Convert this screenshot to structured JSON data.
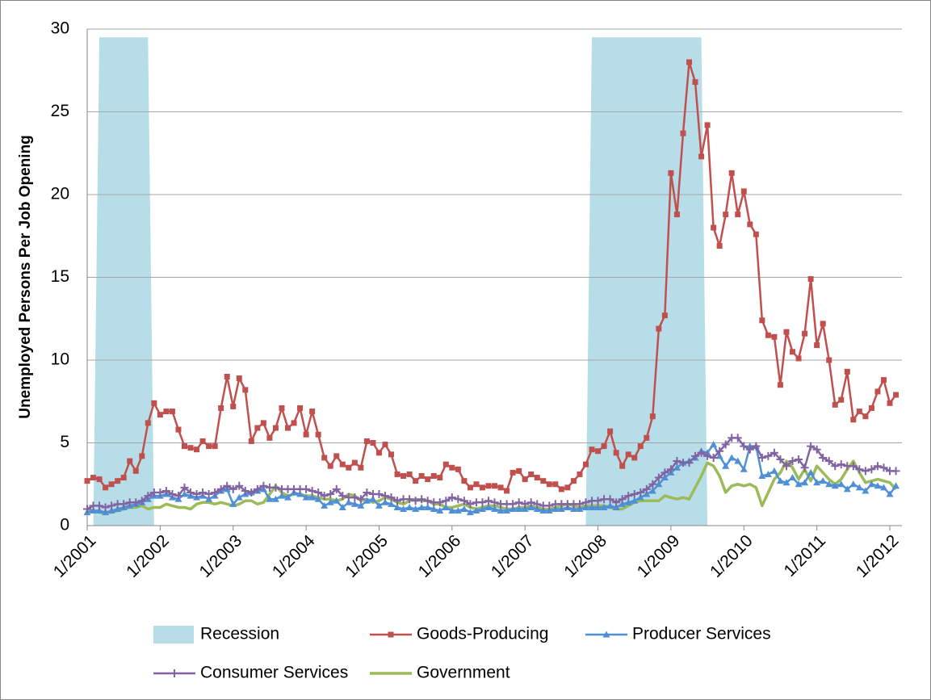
{
  "chart_data": {
    "type": "line",
    "y_label": "Unemployed Persons Per Job Opening",
    "categories": [
      "1/2001",
      null,
      null,
      null,
      null,
      null,
      null,
      null,
      null,
      null,
      null,
      null,
      "1/2002",
      null,
      null,
      null,
      null,
      null,
      null,
      null,
      null,
      null,
      null,
      null,
      "1/2003",
      null,
      null,
      null,
      null,
      null,
      null,
      null,
      null,
      null,
      null,
      null,
      "1/2004",
      null,
      null,
      null,
      null,
      null,
      null,
      null,
      null,
      null,
      null,
      null,
      "1/2005",
      null,
      null,
      null,
      null,
      null,
      null,
      null,
      null,
      null,
      null,
      null,
      "1/2006",
      null,
      null,
      null,
      null,
      null,
      null,
      null,
      null,
      null,
      null,
      null,
      "1/2007",
      null,
      null,
      null,
      null,
      null,
      null,
      null,
      null,
      null,
      null,
      null,
      "1/2008",
      null,
      null,
      null,
      null,
      null,
      null,
      null,
      null,
      null,
      null,
      null,
      "1/2009",
      null,
      null,
      null,
      null,
      null,
      null,
      null,
      null,
      null,
      null,
      null,
      "1/2010",
      null,
      null,
      null,
      null,
      null,
      null,
      null,
      null,
      null,
      null,
      null,
      "1/2011",
      null,
      null,
      null,
      null,
      null,
      null,
      null,
      null,
      null,
      null,
      null,
      "1/2012",
      null
    ],
    "ylim": [
      0,
      30
    ],
    "yticks": [
      0,
      5,
      10,
      15,
      20,
      25,
      30
    ],
    "grid": true,
    "series": [
      {
        "name": "Recession",
        "type": "area",
        "color": "#b7dde8",
        "values": [
          0,
          0,
          29.5,
          29.5,
          29.5,
          29.5,
          29.5,
          29.5,
          29.5,
          29.5,
          29.5,
          0,
          0,
          0,
          0,
          0,
          0,
          0,
          0,
          0,
          0,
          0,
          0,
          0,
          0,
          0,
          0,
          0,
          0,
          0,
          0,
          0,
          0,
          0,
          0,
          0,
          0,
          0,
          0,
          0,
          0,
          0,
          0,
          0,
          0,
          0,
          0,
          0,
          0,
          0,
          0,
          0,
          0,
          0,
          0,
          0,
          0,
          0,
          0,
          0,
          0,
          0,
          0,
          0,
          0,
          0,
          0,
          0,
          0,
          0,
          0,
          0,
          0,
          0,
          0,
          0,
          0,
          0,
          0,
          0,
          0,
          0,
          0,
          29.5,
          29.5,
          29.5,
          29.5,
          29.5,
          29.5,
          29.5,
          29.5,
          29.5,
          29.5,
          29.5,
          29.5,
          29.5,
          29.5,
          29.5,
          29.5,
          29.5,
          29.5,
          29.5,
          0,
          0,
          0,
          0,
          0,
          0,
          0,
          0,
          0,
          0,
          0,
          0,
          0,
          0,
          0,
          0,
          0,
          0,
          0,
          0,
          0,
          0,
          0,
          0,
          0,
          0,
          0,
          0,
          0,
          0,
          0,
          0
        ]
      },
      {
        "name": "Goods-Producing",
        "type": "line",
        "marker": "square",
        "color": "#c0504d",
        "values": [
          2.7,
          2.9,
          2.8,
          2.3,
          2.5,
          2.7,
          2.9,
          3.9,
          3.3,
          4.2,
          6.2,
          7.4,
          6.7,
          6.9,
          6.9,
          5.8,
          4.8,
          4.7,
          4.6,
          5.1,
          4.8,
          4.8,
          7.1,
          9.0,
          7.2,
          8.9,
          8.2,
          5.1,
          5.9,
          6.2,
          5.3,
          5.9,
          7.1,
          5.9,
          6.2,
          7.1,
          5.5,
          6.9,
          5.5,
          4.1,
          3.6,
          4.2,
          3.7,
          3.5,
          3.8,
          3.5,
          5.1,
          5.0,
          4.4,
          4.9,
          4.3,
          3.1,
          3.0,
          3.1,
          2.7,
          3.0,
          2.8,
          3.0,
          2.9,
          3.7,
          3.5,
          3.4,
          2.7,
          2.3,
          2.5,
          2.3,
          2.4,
          2.4,
          2.3,
          2.1,
          3.2,
          3.3,
          2.8,
          3.1,
          2.9,
          2.7,
          2.5,
          2.5,
          2.2,
          2.3,
          2.7,
          3.1,
          3.7,
          4.6,
          4.5,
          4.8,
          5.7,
          4.4,
          3.6,
          4.3,
          4.1,
          4.8,
          5.3,
          6.6,
          11.9,
          12.7,
          21.3,
          18.8,
          23.7,
          28.0,
          26.8,
          22.3,
          24.2,
          18.0,
          16.9,
          18.8,
          21.3,
          18.8,
          20.2,
          18.2,
          17.6,
          12.4,
          11.5,
          11.4,
          8.5,
          11.7,
          10.5,
          10.1,
          11.6,
          14.9,
          10.9,
          12.2,
          10.0,
          7.3,
          7.6,
          9.3,
          6.4,
          6.9,
          6.6,
          7.1,
          8.1,
          8.8,
          7.4,
          7.9
        ]
      },
      {
        "name": "Producer Services",
        "type": "line",
        "marker": "triangle",
        "color": "#4f8fd6",
        "values": [
          0.8,
          0.9,
          0.9,
          0.8,
          0.9,
          1.0,
          1.1,
          1.2,
          1.3,
          1.4,
          1.6,
          1.8,
          1.8,
          1.9,
          1.7,
          1.6,
          1.9,
          1.8,
          1.7,
          1.8,
          1.6,
          1.8,
          2.1,
          2.2,
          1.3,
          1.7,
          1.9,
          2.0,
          2.1,
          2.2,
          1.6,
          1.6,
          1.8,
          1.7,
          2.0,
          1.9,
          1.7,
          1.7,
          1.6,
          1.2,
          1.4,
          1.5,
          1.1,
          1.4,
          1.3,
          1.2,
          1.5,
          1.6,
          1.2,
          1.4,
          1.3,
          1.1,
          1.0,
          1.1,
          1.0,
          1.1,
          1.1,
          1.0,
          0.9,
          1.1,
          0.9,
          0.9,
          1.0,
          0.8,
          0.9,
          1.0,
          1.1,
          1.0,
          0.9,
          0.9,
          1.0,
          1.0,
          1.0,
          1.1,
          1.0,
          0.9,
          0.9,
          1.0,
          1.0,
          1.1,
          1.0,
          1.0,
          1.1,
          1.1,
          1.1,
          1.1,
          1.2,
          1.1,
          1.3,
          1.4,
          1.5,
          1.7,
          1.9,
          2.1,
          2.5,
          2.9,
          3.2,
          3.5,
          3.8,
          3.9,
          4.1,
          4.5,
          4.4,
          4.9,
          4.2,
          3.6,
          4.1,
          3.9,
          3.4,
          4.8,
          4.8,
          3.0,
          3.1,
          3.3,
          2.7,
          2.6,
          2.9,
          2.5,
          2.6,
          3.2,
          2.6,
          2.7,
          2.5,
          2.4,
          2.5,
          2.2,
          2.5,
          2.3,
          2.1,
          2.5,
          2.4,
          2.3,
          1.9,
          2.4
        ]
      },
      {
        "name": "Consumer Services",
        "type": "line",
        "marker": "plus",
        "color": "#8064a2",
        "values": [
          1.0,
          1.2,
          1.2,
          1.1,
          1.2,
          1.3,
          1.3,
          1.4,
          1.4,
          1.5,
          1.8,
          2.0,
          2.0,
          2.1,
          1.9,
          1.8,
          2.3,
          2.0,
          1.9,
          2.0,
          1.9,
          2.0,
          2.2,
          2.4,
          2.2,
          2.4,
          2.1,
          2.0,
          2.2,
          2.4,
          2.3,
          2.3,
          2.2,
          2.2,
          2.2,
          2.2,
          2.2,
          2.1,
          2.0,
          1.8,
          1.9,
          2.2,
          1.8,
          1.7,
          1.7,
          1.6,
          2.0,
          1.9,
          1.9,
          1.8,
          1.7,
          1.5,
          1.6,
          1.6,
          1.5,
          1.6,
          1.5,
          1.4,
          1.4,
          1.5,
          1.7,
          1.6,
          1.5,
          1.3,
          1.4,
          1.4,
          1.5,
          1.4,
          1.3,
          1.3,
          1.3,
          1.4,
          1.3,
          1.4,
          1.3,
          1.2,
          1.2,
          1.3,
          1.3,
          1.3,
          1.3,
          1.3,
          1.4,
          1.5,
          1.5,
          1.6,
          1.6,
          1.4,
          1.6,
          1.8,
          1.9,
          2.0,
          2.2,
          2.5,
          2.9,
          3.2,
          3.4,
          3.9,
          3.8,
          3.8,
          4.2,
          4.4,
          4.2,
          4.1,
          4.5,
          4.9,
          5.3,
          5.3,
          4.8,
          4.6,
          4.8,
          4.1,
          4.2,
          4.4,
          4.0,
          3.6,
          3.9,
          4.0,
          3.5,
          4.8,
          4.6,
          4.1,
          3.9,
          3.6,
          3.7,
          3.6,
          3.6,
          3.4,
          3.3,
          3.4,
          3.6,
          3.5,
          3.3,
          3.3
        ]
      },
      {
        "name": "Government",
        "type": "line",
        "marker": "none",
        "color": "#9bbb59",
        "values": [
          1.0,
          0.9,
          0.8,
          0.8,
          0.8,
          0.9,
          1.0,
          1.1,
          1.1,
          1.2,
          1.0,
          1.1,
          1.1,
          1.3,
          1.2,
          1.1,
          1.1,
          1.0,
          1.3,
          1.4,
          1.4,
          1.3,
          1.4,
          1.3,
          1.2,
          1.3,
          1.5,
          1.5,
          1.3,
          1.4,
          1.9,
          2.4,
          2.0,
          1.8,
          1.9,
          1.9,
          1.8,
          1.8,
          1.7,
          1.6,
          1.6,
          1.5,
          1.6,
          1.9,
          1.8,
          1.5,
          1.6,
          1.4,
          1.5,
          1.7,
          1.6,
          1.4,
          1.3,
          1.5,
          1.6,
          1.5,
          1.5,
          1.3,
          1.3,
          1.1,
          1.1,
          1.2,
          1.3,
          1.1,
          1.0,
          1.1,
          1.2,
          1.2,
          1.1,
          1.0,
          1.0,
          1.1,
          1.1,
          1.2,
          1.1,
          1.0,
          1.0,
          1.1,
          1.2,
          1.3,
          1.2,
          1.1,
          1.2,
          1.2,
          1.2,
          1.2,
          1.1,
          1.0,
          1.0,
          1.2,
          1.4,
          1.5,
          1.5,
          1.5,
          1.5,
          1.8,
          1.7,
          1.6,
          1.7,
          1.6,
          2.3,
          3.0,
          3.8,
          3.6,
          3.0,
          2.0,
          2.4,
          2.5,
          2.4,
          2.5,
          2.3,
          1.2,
          2.0,
          2.8,
          3.2,
          3.9,
          3.5,
          2.8,
          3.4,
          2.7,
          3.6,
          3.2,
          2.8,
          2.5,
          2.8,
          3.4,
          3.9,
          3.2,
          2.6,
          2.7,
          2.8,
          2.7,
          2.6,
          2.2
        ]
      }
    ]
  }
}
